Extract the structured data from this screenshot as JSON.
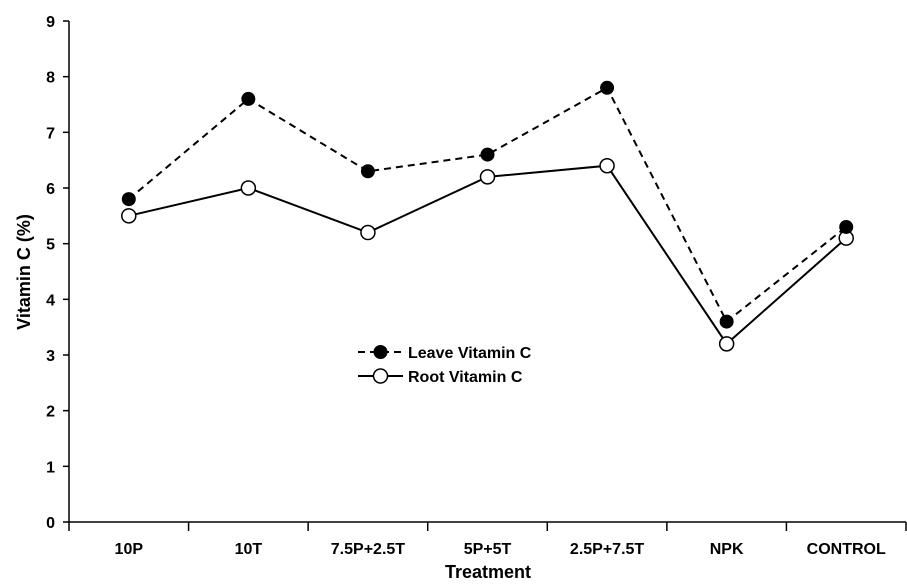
{
  "chart_data": {
    "type": "line",
    "xlabel": "Treatment",
    "ylabel": "Vitamin C (%)",
    "categories": [
      "10P",
      "10T",
      "7.5P+2.5T",
      "5P+5T",
      "2.5P+7.5T",
      "NPK",
      "CONTROL"
    ],
    "ylim": [
      0,
      9
    ],
    "yticks": [
      0,
      1,
      2,
      3,
      4,
      5,
      6,
      7,
      8,
      9
    ],
    "grid": false,
    "legend_position": "center",
    "series": [
      {
        "name": "Leave Vitamin C",
        "values": [
          5.8,
          7.6,
          6.3,
          6.6,
          7.8,
          3.6,
          5.3
        ],
        "line_style": "dashed",
        "marker": "filled-circle",
        "color": "#000000"
      },
      {
        "name": "Root Vitamin C",
        "values": [
          5.5,
          6.0,
          5.2,
          6.2,
          6.4,
          3.2,
          5.1
        ],
        "line_style": "solid",
        "marker": "open-circle",
        "color": "#000000"
      }
    ]
  }
}
